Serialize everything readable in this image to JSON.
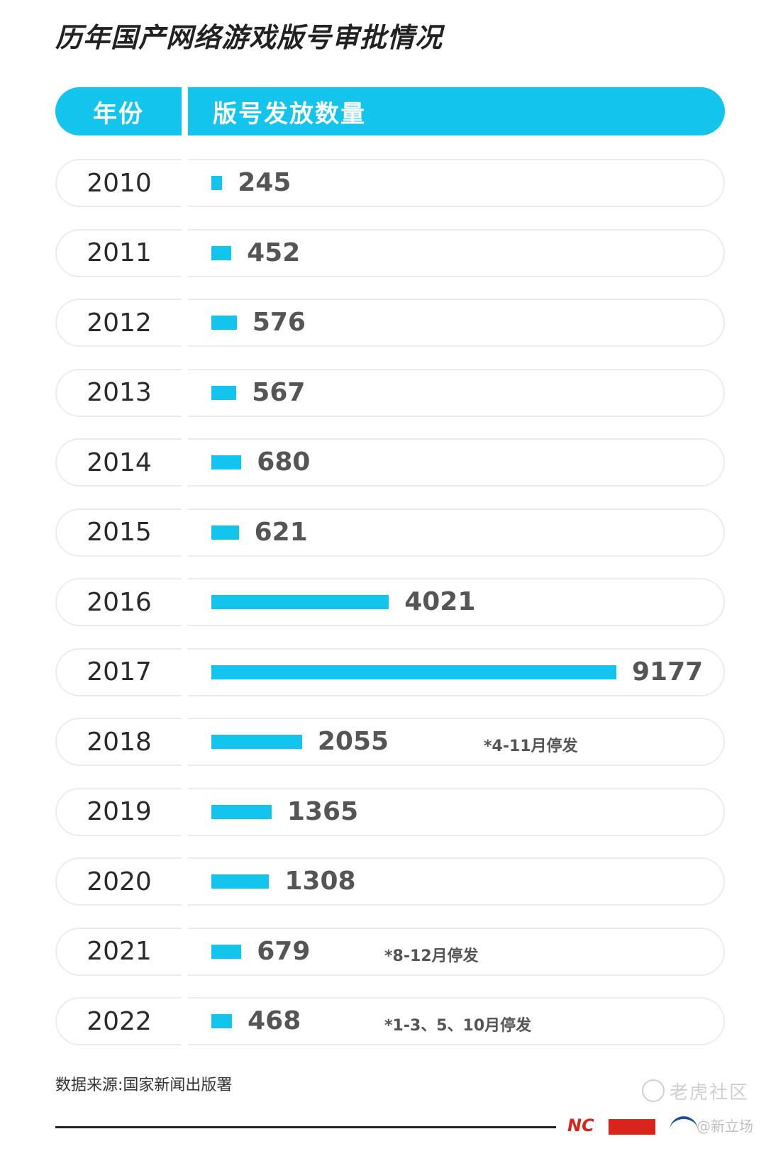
{
  "title": "历年国产网络游戏版号审批情况",
  "header": {
    "year_label": "年份",
    "count_label": "版号发放数量"
  },
  "chart_data": {
    "type": "bar",
    "orientation": "horizontal",
    "categories": [
      "2010",
      "2011",
      "2012",
      "2013",
      "2014",
      "2015",
      "2016",
      "2017",
      "2018",
      "2019",
      "2020",
      "2021",
      "2022"
    ],
    "values": [
      245,
      452,
      576,
      567,
      680,
      621,
      4021,
      9177,
      2055,
      1365,
      1308,
      679,
      468
    ],
    "annotations": [
      {
        "category": "2018",
        "text": "*4-11月停发"
      },
      {
        "category": "2021",
        "text": "*8-12月停发"
      },
      {
        "category": "2022",
        "text": "*1-3、5、10月停发"
      }
    ],
    "bar_color": "#13c5ec",
    "title": "历年国产网络游戏版号审批情况",
    "xlabel": "版号发放数量",
    "ylabel": "年份"
  },
  "source": "数据来源:国家新闻出版署",
  "watermark": "老虎社区",
  "handle": "@新立场",
  "logo_text": "NC"
}
